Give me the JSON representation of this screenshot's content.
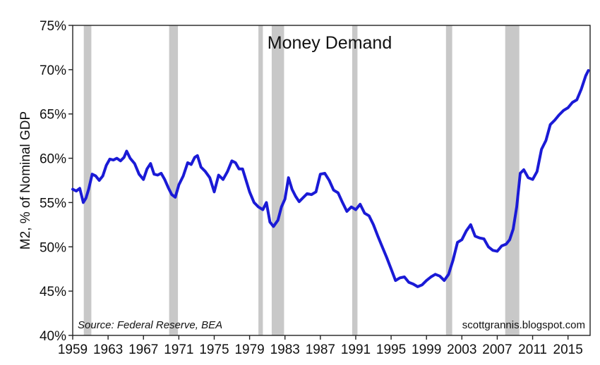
{
  "chart_data": {
    "type": "line",
    "title": "Money Demand",
    "ylabel": "M2, % of Nominal GDP",
    "xlabel": "",
    "source": "Source: Federal Reserve, BEA",
    "credit": "scottgrannis.blogspot.com",
    "xlim": [
      1959,
      2017.5
    ],
    "ylim": [
      40,
      75
    ],
    "x_ticks": [
      1959,
      1963,
      1967,
      1971,
      1975,
      1979,
      1983,
      1987,
      1991,
      1995,
      1999,
      2003,
      2007,
      2011,
      2015
    ],
    "x_tick_labels": [
      "1959",
      "1963",
      "1967",
      "1971",
      "1975",
      "1979",
      "1983",
      "1987",
      "1991",
      "1995",
      "1999",
      "2003",
      "2007",
      "2011",
      "2015"
    ],
    "y_ticks": [
      40,
      45,
      50,
      55,
      60,
      65,
      70,
      75
    ],
    "y_tick_labels": [
      "40%",
      "45%",
      "50%",
      "55%",
      "60%",
      "65%",
      "70%",
      "75%"
    ],
    "grid": false,
    "recessions": [
      [
        1960.25,
        1961.1
      ],
      [
        1969.9,
        1970.9
      ],
      [
        1980.0,
        1980.5
      ],
      [
        1981.5,
        1982.9
      ],
      [
        1990.6,
        1991.2
      ],
      [
        2001.2,
        2001.9
      ],
      [
        2007.9,
        2009.5
      ]
    ],
    "colors": {
      "line": "#1a1ad6",
      "recession": "#c8c8c8",
      "axis": "#222222"
    },
    "series": [
      {
        "x": [
          1959.0,
          1959.4,
          1959.8,
          1960.2,
          1960.5,
          1960.8,
          1961.2,
          1961.6,
          1962.0,
          1962.4,
          1962.8,
          1963.2,
          1963.6,
          1964.0,
          1964.4,
          1964.8,
          1965.1,
          1965.5,
          1966.0,
          1966.5,
          1967.0,
          1967.4,
          1967.8,
          1968.2,
          1968.6,
          1969.0,
          1969.4,
          1969.8,
          1970.2,
          1970.6,
          1971.0,
          1971.5,
          1972.0,
          1972.4,
          1972.8,
          1973.1,
          1973.5,
          1974.0,
          1974.5,
          1975.0,
          1975.5,
          1976.0,
          1976.5,
          1977.0,
          1977.4,
          1977.8,
          1978.2,
          1978.6,
          1979.0,
          1979.5,
          1980.0,
          1980.5,
          1980.9,
          1981.3,
          1981.7,
          1982.2,
          1982.6,
          1983.0,
          1983.4,
          1983.8,
          1984.2,
          1984.6,
          1985.0,
          1985.5,
          1986.0,
          1986.5,
          1987.0,
          1987.5,
          1988.0,
          1988.5,
          1989.0,
          1989.5,
          1990.0,
          1990.5,
          1991.0,
          1991.5,
          1992.0,
          1992.5,
          1993.0,
          1993.5,
          1994.0,
          1994.5,
          1995.0,
          1995.5,
          1996.0,
          1996.5,
          1997.0,
          1997.5,
          1998.0,
          1998.5,
          1999.0,
          1999.5,
          2000.0,
          2000.5,
          2001.0,
          2001.5,
          2002.0,
          2002.5,
          2003.0,
          2003.5,
          2004.0,
          2004.5,
          2005.0,
          2005.5,
          2006.0,
          2006.5,
          2007.0,
          2007.5,
          2008.0,
          2008.4,
          2008.8,
          2009.2,
          2009.6,
          2010.0,
          2010.5,
          2011.0,
          2011.5,
          2012.0,
          2012.5,
          2013.0,
          2013.5,
          2014.0,
          2014.5,
          2015.0,
          2015.5,
          2016.0,
          2016.5,
          2017.0,
          2017.3
        ],
        "values": [
          56.5,
          56.3,
          56.6,
          55.0,
          55.5,
          56.5,
          58.2,
          58.0,
          57.5,
          58.0,
          59.2,
          59.9,
          59.8,
          60.0,
          59.7,
          60.1,
          60.8,
          60.0,
          59.4,
          58.2,
          57.6,
          58.8,
          59.4,
          58.2,
          58.1,
          58.3,
          57.6,
          56.7,
          55.9,
          55.6,
          57.0,
          58.0,
          59.5,
          59.3,
          60.1,
          60.3,
          59.0,
          58.5,
          57.8,
          56.2,
          58.1,
          57.6,
          58.5,
          59.7,
          59.5,
          58.8,
          58.8,
          57.5,
          56.2,
          55.0,
          54.5,
          54.2,
          55.0,
          52.8,
          52.3,
          53.0,
          54.5,
          55.4,
          57.8,
          56.5,
          55.7,
          55.1,
          55.5,
          56.0,
          55.9,
          56.2,
          58.2,
          58.3,
          57.5,
          56.4,
          56.1,
          55.0,
          54.0,
          54.5,
          54.2,
          54.8,
          53.8,
          53.5,
          52.5,
          51.2,
          50.0,
          48.8,
          47.5,
          46.2,
          46.5,
          46.6,
          46.0,
          45.8,
          45.5,
          45.7,
          46.2,
          46.6,
          46.9,
          46.7,
          46.2,
          46.9,
          48.5,
          50.5,
          50.8,
          51.8,
          52.5,
          51.2,
          51.0,
          50.9,
          50.0,
          49.6,
          49.5,
          50.1,
          50.3,
          50.8,
          52.0,
          54.5,
          58.3,
          58.7,
          57.8,
          57.6,
          58.5,
          61.0,
          62.0,
          63.8,
          64.3,
          64.9,
          65.4,
          65.7,
          66.3,
          66.6,
          67.8,
          69.3,
          69.9
        ]
      }
    ]
  }
}
